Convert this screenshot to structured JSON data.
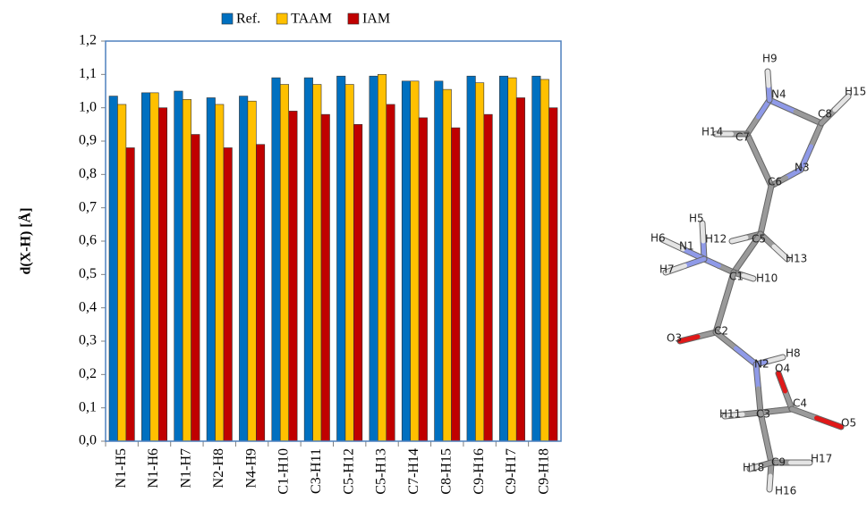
{
  "chart_data": {
    "type": "bar",
    "y_label": "d(X-H) [Å]",
    "categories": [
      "N1-H5",
      "N1-H6",
      "N1-H7",
      "N2-H8",
      "N4-H9",
      "C1-H10",
      "C3-H11",
      "C5-H12",
      "C5-H13",
      "C7-H14",
      "C8-H15",
      "C9-H16",
      "C9-H17",
      "C9-H18"
    ],
    "series": [
      {
        "name": "Ref.",
        "color": "#0070c0",
        "values": [
          1.035,
          1.045,
          1.05,
          1.03,
          1.035,
          1.09,
          1.09,
          1.095,
          1.095,
          1.08,
          1.08,
          1.095,
          1.095,
          1.095
        ]
      },
      {
        "name": "TAAM",
        "color": "#ffc000",
        "values": [
          1.01,
          1.045,
          1.025,
          1.01,
          1.02,
          1.07,
          1.07,
          1.07,
          1.1,
          1.08,
          1.055,
          1.075,
          1.09,
          1.085
        ]
      },
      {
        "name": "IAM",
        "color": "#c00000",
        "values": [
          0.88,
          1.0,
          0.92,
          0.88,
          0.89,
          0.99,
          0.98,
          0.95,
          1.01,
          0.97,
          0.94,
          0.98,
          1.03,
          1.0
        ]
      }
    ],
    "ylim": [
      0,
      1.2
    ],
    "yticks": [
      {
        "value": 0,
        "label": "0,0"
      },
      {
        "value": 0.1,
        "label": "0,1"
      },
      {
        "value": 0.2,
        "label": "0,2"
      },
      {
        "value": 0.3,
        "label": "0,3"
      },
      {
        "value": 0.4,
        "label": "0,4"
      },
      {
        "value": 0.5,
        "label": "0,5"
      },
      {
        "value": 0.6,
        "label": "0,6"
      },
      {
        "value": 0.7,
        "label": "0,7"
      },
      {
        "value": 0.8,
        "label": "0,8"
      },
      {
        "value": 0.9,
        "label": "0,9"
      },
      {
        "value": 1.0,
        "label": "1,0"
      },
      {
        "value": 1.1,
        "label": "1,1"
      },
      {
        "value": 1.2,
        "label": "1,2"
      }
    ],
    "grid": false,
    "legend": "top"
  },
  "molecule": {
    "atoms": [
      "H9",
      "N4",
      "H15",
      "C8",
      "H14",
      "C7",
      "N3",
      "C6",
      "H5",
      "H6",
      "N1",
      "H12",
      "C5",
      "H13",
      "H7",
      "C1",
      "H10",
      "O3",
      "C2",
      "H8",
      "N2",
      "O4",
      "C4",
      "H11",
      "C3",
      "O5",
      "H17",
      "H18",
      "C9",
      "H16"
    ]
  }
}
